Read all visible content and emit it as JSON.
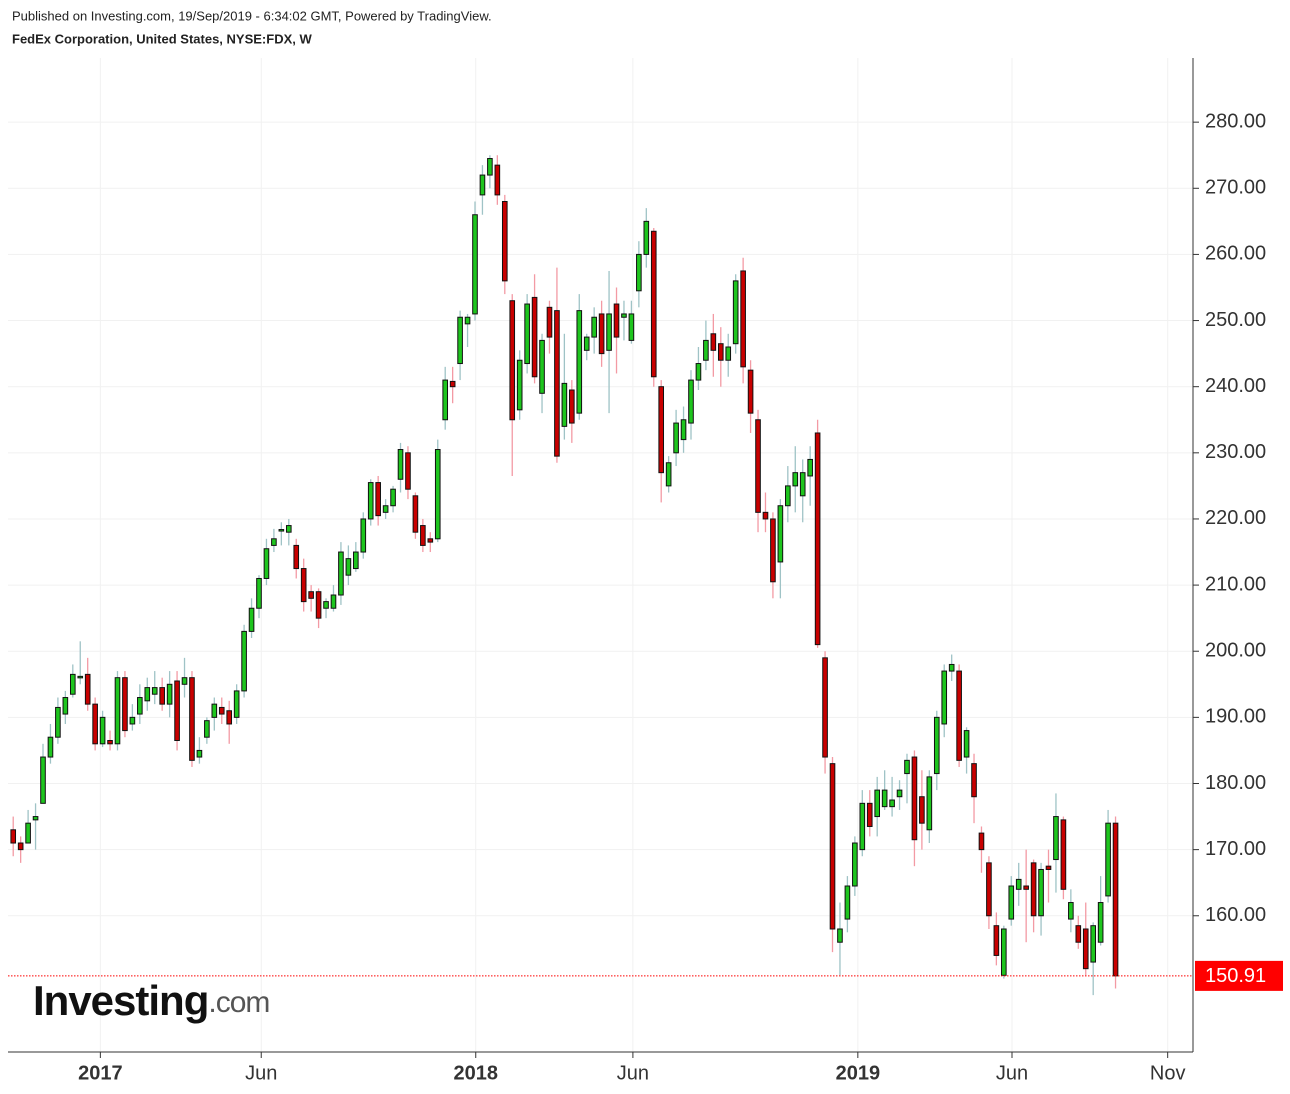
{
  "chart_data": {
    "type": "candlestick",
    "publisher": "Published on Investing.com, 19/Sep/2019 - 6:34:02 GMT, Powered by TradingView.",
    "title": "FedEx Corporation, United States, NYSE:FDX, W",
    "watermark_brand": "Investing",
    "watermark_suffix": ".com",
    "up_color": "#1ec51e",
    "down_color": "#c80000",
    "up_wick_color": "#9fc3c6",
    "down_wick_color": "#f39aa4",
    "grid": true,
    "last_price": 150.91,
    "xlim": [
      -0.7,
      158.4
    ],
    "xticks": [
      {
        "value": 11.7,
        "label": "2017"
      },
      {
        "value": 33.3,
        "label": "Jun"
      },
      {
        "value": 62.1,
        "label": "2018"
      },
      {
        "value": 83.2,
        "label": "Jun"
      },
      {
        "value": 113.4,
        "label": "2019"
      },
      {
        "value": 134.1,
        "label": "Jun"
      },
      {
        "value": 155.0,
        "label": "Nov"
      }
    ],
    "ylim": [
      139.4,
      289.7
    ],
    "yticks": [
      {
        "value": 160,
        "label": "160.00"
      },
      {
        "value": 170,
        "label": "170.00"
      },
      {
        "value": 180,
        "label": "180.00"
      },
      {
        "value": 190,
        "label": "190.00"
      },
      {
        "value": 200,
        "label": "200.00"
      },
      {
        "value": 210,
        "label": "210.00"
      },
      {
        "value": 220,
        "label": "220.00"
      },
      {
        "value": 230,
        "label": "230.00"
      },
      {
        "value": 240,
        "label": "240.00"
      },
      {
        "value": 250,
        "label": "250.00"
      },
      {
        "value": 260,
        "label": "260.00"
      },
      {
        "value": 270,
        "label": "270.00"
      },
      {
        "value": 280,
        "label": "280.00"
      }
    ],
    "ohlc": [
      [
        173,
        175,
        169,
        171
      ],
      [
        171,
        172,
        168,
        170
      ],
      [
        171,
        176,
        171,
        174
      ],
      [
        174.5,
        177,
        170,
        175
      ],
      [
        177,
        186,
        177,
        184
      ],
      [
        184,
        189,
        183,
        187
      ],
      [
        187,
        193,
        186,
        191.5
      ],
      [
        190.5,
        194,
        189,
        193
      ],
      [
        193.5,
        198,
        193,
        196.5
      ],
      [
        196,
        201.5,
        195,
        196.2
      ],
      [
        196.5,
        199,
        191,
        192
      ],
      [
        192,
        193,
        185,
        186
      ],
      [
        186,
        191,
        185.5,
        190
      ],
      [
        186.5,
        188,
        185,
        186
      ],
      [
        186,
        197,
        185,
        196
      ],
      [
        196,
        197,
        187,
        188
      ],
      [
        189,
        192,
        188,
        190
      ],
      [
        190.5,
        195,
        189,
        193
      ],
      [
        192.5,
        196,
        191,
        194.5
      ],
      [
        193.5,
        197,
        192,
        194.5
      ],
      [
        194.5,
        196,
        191,
        192
      ],
      [
        192,
        197,
        190,
        195
      ],
      [
        195.5,
        197,
        185,
        186.5
      ],
      [
        195,
        199,
        193,
        196
      ],
      [
        196,
        197,
        182.5,
        183.5
      ],
      [
        184,
        187,
        183,
        185
      ],
      [
        187,
        190,
        186,
        189.5
      ],
      [
        190,
        193,
        188,
        192
      ],
      [
        191.5,
        193,
        189,
        190.5
      ],
      [
        191,
        192.5,
        186,
        189
      ],
      [
        190,
        195,
        189,
        194
      ],
      [
        194,
        204,
        193,
        203
      ],
      [
        203,
        208,
        202,
        206.5
      ],
      [
        206.5,
        211.5,
        205,
        211
      ],
      [
        211,
        217,
        210,
        215.5
      ],
      [
        216,
        218.5,
        215,
        217
      ],
      [
        218.2,
        219.5,
        216,
        218.4
      ],
      [
        218,
        220,
        216,
        219
      ],
      [
        216,
        217,
        211,
        212.5
      ],
      [
        212.5,
        214,
        206,
        207.5
      ],
      [
        209,
        210,
        206,
        208
      ],
      [
        209,
        209.5,
        203.5,
        205
      ],
      [
        206.5,
        208,
        205,
        207.5
      ],
      [
        206.5,
        210,
        206,
        208.5
      ],
      [
        208.5,
        216.5,
        207,
        215
      ],
      [
        211.5,
        216,
        210,
        214
      ],
      [
        212.5,
        216.5,
        212,
        215
      ],
      [
        215,
        221,
        214,
        220
      ],
      [
        220,
        226,
        219,
        225.5
      ],
      [
        225.5,
        226.5,
        219,
        220.5
      ],
      [
        221,
        223,
        220,
        222
      ],
      [
        222,
        225,
        221,
        224.5
      ],
      [
        226,
        231.5,
        224,
        230.5
      ],
      [
        230,
        231,
        223,
        224.5
      ],
      [
        223.5,
        224,
        217,
        218
      ],
      [
        219,
        220,
        215,
        216
      ],
      [
        217,
        218,
        215,
        216.5
      ],
      [
        217,
        232,
        216.5,
        230.5
      ],
      [
        235,
        243,
        233.5,
        241
      ],
      [
        240.8,
        243,
        237.5,
        240
      ],
      [
        243.5,
        251.5,
        241,
        250.5
      ],
      [
        249.5,
        251,
        246,
        250.5
      ],
      [
        251,
        268,
        250,
        266
      ],
      [
        269,
        273.5,
        266,
        272
      ],
      [
        272,
        275,
        270,
        274.5
      ],
      [
        273.5,
        275,
        267.5,
        269
      ],
      [
        268,
        269,
        254,
        256
      ],
      [
        253,
        254,
        226.5,
        235
      ],
      [
        236.5,
        245.5,
        235,
        244
      ],
      [
        243.5,
        254,
        242,
        252.5
      ],
      [
        253.5,
        257,
        240.5,
        241.5
      ],
      [
        239,
        248,
        236,
        247
      ],
      [
        252,
        253,
        245,
        247.5
      ],
      [
        251.5,
        258,
        228.5,
        229.5
      ],
      [
        234,
        248,
        232,
        240.5
      ],
      [
        239.5,
        241,
        231.5,
        234.5
      ],
      [
        236,
        254,
        235,
        251.5
      ],
      [
        245.5,
        248,
        244,
        247.5
      ],
      [
        247.5,
        252,
        245,
        250.5
      ],
      [
        251,
        253,
        243,
        245
      ],
      [
        245.5,
        257.5,
        236,
        251
      ],
      [
        252.5,
        255,
        242,
        247.5
      ],
      [
        250.5,
        253,
        247,
        251
      ],
      [
        247,
        253,
        246.5,
        251
      ],
      [
        254.5,
        262,
        252,
        260
      ],
      [
        260,
        267,
        258,
        265
      ],
      [
        263.5,
        264,
        240,
        241.5
      ],
      [
        240,
        241,
        222.5,
        227
      ],
      [
        225,
        229.5,
        224,
        228.5
      ],
      [
        230,
        236.5,
        228,
        234.5
      ],
      [
        232,
        237,
        230,
        235
      ],
      [
        234.5,
        242.5,
        232,
        241
      ],
      [
        241,
        246,
        239.5,
        243.5
      ],
      [
        244,
        250,
        242.5,
        247
      ],
      [
        248,
        251,
        241.5,
        245.5
      ],
      [
        246.5,
        249,
        240,
        244
      ],
      [
        244,
        248,
        241.5,
        246
      ],
      [
        246.5,
        257,
        245,
        256
      ],
      [
        257.5,
        259.5,
        240.5,
        243
      ],
      [
        242.5,
        244,
        233,
        236
      ],
      [
        235,
        236.5,
        218,
        221
      ],
      [
        221,
        224,
        218,
        220
      ],
      [
        220,
        221,
        208,
        210.5
      ],
      [
        213.5,
        223,
        208,
        222
      ],
      [
        222,
        228,
        219.5,
        225
      ],
      [
        225,
        231,
        221,
        227
      ],
      [
        223.5,
        229,
        219.5,
        227
      ],
      [
        226.5,
        231,
        222,
        229
      ],
      [
        233,
        235,
        200.5,
        201
      ],
      [
        199,
        200,
        181.5,
        184
      ],
      [
        183,
        184,
        154.5,
        158
      ],
      [
        156,
        162,
        151,
        158
      ],
      [
        159.5,
        166,
        157.5,
        164.5
      ],
      [
        164.5,
        172,
        163,
        171
      ],
      [
        170,
        179,
        169,
        177
      ],
      [
        177,
        179,
        172,
        173.5
      ],
      [
        175,
        181,
        172,
        179
      ],
      [
        176.5,
        182,
        176,
        179
      ],
      [
        176.5,
        181,
        175,
        177.5
      ],
      [
        178,
        180.5,
        176,
        179
      ],
      [
        181.5,
        184.5,
        177,
        183.5
      ],
      [
        184,
        185,
        167.5,
        171.5
      ],
      [
        178,
        182,
        170,
        174
      ],
      [
        173,
        182,
        171,
        181
      ],
      [
        181.5,
        191,
        179,
        190
      ],
      [
        189,
        198,
        187,
        197
      ],
      [
        197,
        199.5,
        195.5,
        198
      ],
      [
        197,
        198,
        182.5,
        183.5
      ],
      [
        184,
        188.5,
        181.5,
        188
      ],
      [
        183,
        184.5,
        174,
        178
      ],
      [
        172.5,
        173.5,
        166.5,
        170
      ],
      [
        168,
        169,
        158,
        160
      ],
      [
        158.5,
        160.5,
        152.5,
        154
      ],
      [
        151,
        158.5,
        150.5,
        158
      ],
      [
        159.5,
        166,
        158.5,
        164.5
      ],
      [
        164,
        168,
        161.5,
        165.5
      ],
      [
        164.5,
        170,
        156,
        164
      ],
      [
        168,
        168.5,
        157.5,
        160
      ],
      [
        160,
        168,
        157,
        167
      ],
      [
        167.5,
        170,
        162,
        167
      ],
      [
        168.5,
        178.5,
        163.5,
        175
      ],
      [
        174.5,
        175,
        162.5,
        164
      ],
      [
        159.5,
        164,
        157.5,
        162
      ],
      [
        158.5,
        160,
        155,
        156
      ],
      [
        158,
        162,
        151,
        152
      ],
      [
        153,
        159,
        148,
        158.5
      ],
      [
        156,
        166,
        155.5,
        162
      ],
      [
        163,
        176,
        162,
        174
      ],
      [
        174,
        175,
        149,
        150.91
      ]
    ]
  }
}
